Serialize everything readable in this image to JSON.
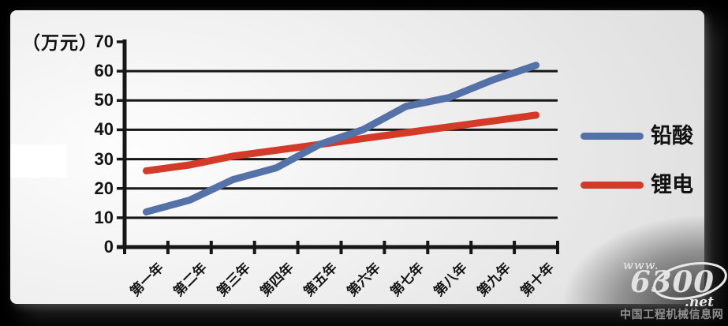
{
  "window": {
    "background": "#000000"
  },
  "chart_data": {
    "type": "line",
    "title": "",
    "unit_label": "（万元）",
    "xlabel": "",
    "ylabel": "（万元）",
    "categories": [
      "第一年",
      "第二年",
      "第三年",
      "第四年",
      "第五年",
      "第六年",
      "第七年",
      "第八年",
      "第九年",
      "第十年"
    ],
    "series": [
      {
        "name": "铅酸",
        "color": "#5471A8",
        "values": [
          12,
          16,
          23,
          27,
          35,
          40,
          48,
          51,
          57,
          62
        ]
      },
      {
        "name": "锂电",
        "color": "#D43A28",
        "values": [
          26,
          28,
          31,
          33,
          35,
          37,
          39,
          41,
          43,
          45
        ]
      }
    ],
    "ylim": [
      0,
      70
    ],
    "yticks": [
      0,
      10,
      20,
      30,
      40,
      50,
      60,
      70
    ],
    "grid": true,
    "legend_position": "right",
    "axis_color": "#161616"
  },
  "watermark": {
    "www": "www.",
    "number": "6300",
    "net": ".net",
    "caption": "中国工程机械信息网"
  }
}
